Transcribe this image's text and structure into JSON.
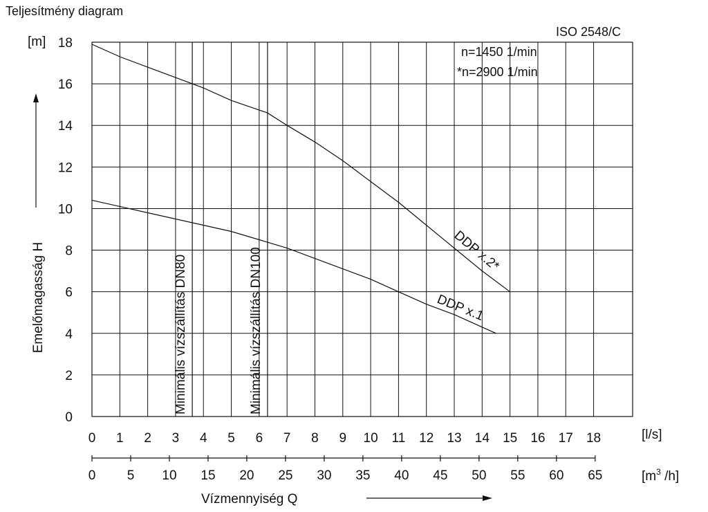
{
  "chart_data": {
    "type": "line",
    "title": "Teljesítmény diagram",
    "standard": "ISO 2548/C",
    "speed_notes": [
      "n=1450 1/min",
      "*n=2900 1/min"
    ],
    "ylabel": "Emelőmagasság H",
    "yunit": "[m]",
    "xlabel": "Vízmennyiség Q",
    "xunit_top": "[l/s]",
    "xunit_bottom_base": "[m",
    "xunit_bottom_sup": "3",
    "xunit_bottom_tail": " /h]",
    "ylim": [
      0,
      18
    ],
    "xlim": [
      0,
      19.4
    ],
    "y_ticks": [
      0,
      2,
      4,
      6,
      8,
      10,
      12,
      14,
      16,
      18
    ],
    "x_ticks_ls": [
      0,
      1,
      2,
      3,
      4,
      5,
      6,
      7,
      8,
      9,
      10,
      11,
      12,
      13,
      14,
      15,
      16,
      17,
      18
    ],
    "x_ticks_m3h": [
      0,
      5,
      10,
      15,
      20,
      25,
      30,
      35,
      40,
      45,
      50,
      55,
      60,
      65
    ],
    "grid": true,
    "series": [
      {
        "name": "DDP x.2*",
        "x": [
          0,
          1,
          2,
          3,
          4,
          5,
          6.3,
          7,
          8,
          9,
          10,
          11,
          12,
          13,
          14,
          15
        ],
        "y": [
          17.9,
          17.3,
          16.8,
          16.3,
          15.8,
          15.2,
          14.6,
          14.0,
          13.2,
          12.3,
          11.3,
          10.3,
          9.2,
          8.1,
          7.0,
          6.0
        ]
      },
      {
        "name": "DDP x.1",
        "x": [
          0,
          1,
          2,
          3,
          4,
          5,
          6,
          7,
          8,
          9,
          10,
          11,
          12,
          13,
          14,
          14.5
        ],
        "y": [
          10.4,
          10.1,
          9.8,
          9.5,
          9.2,
          8.9,
          8.5,
          8.1,
          7.6,
          7.1,
          6.6,
          6.0,
          5.4,
          4.9,
          4.3,
          4.0
        ]
      }
    ],
    "vertical_markers": [
      {
        "x": 3.6,
        "label": "Minimális vízszállítás DN80"
      },
      {
        "x": 6.3,
        "label": "Minimális vízszállítás DN100"
      }
    ]
  }
}
